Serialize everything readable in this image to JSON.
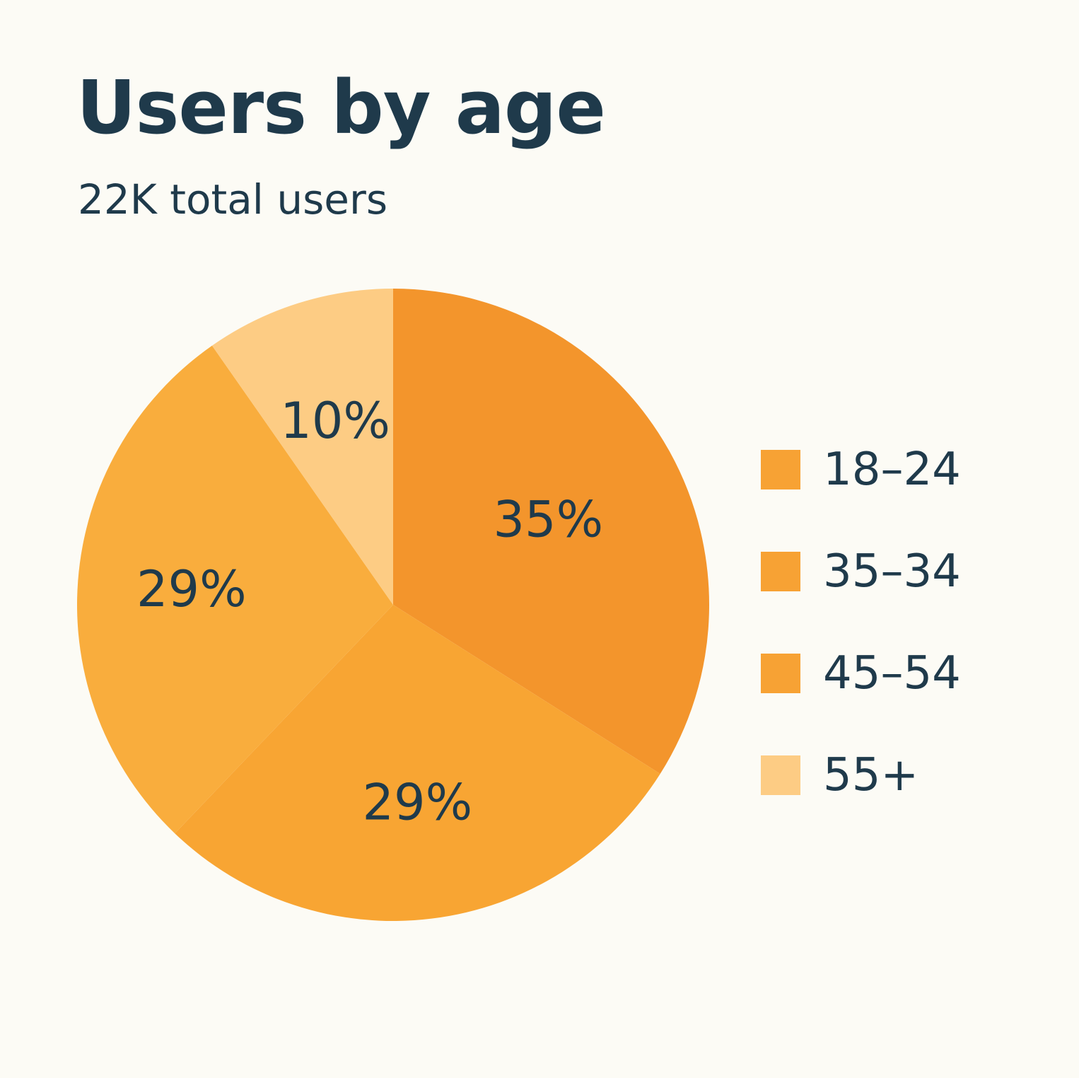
{
  "title": "Users by age",
  "subtitle": "22K total users",
  "chart_data": {
    "type": "pie",
    "categories": [
      "18–24",
      "35–34",
      "45–54",
      "55+"
    ],
    "values": [
      35,
      29,
      29,
      10
    ],
    "value_labels": [
      "35%",
      "29%",
      "29%",
      "10%"
    ],
    "colors": [
      "#f3952c",
      "#f8a533",
      "#f9ad3d",
      "#fdcc84"
    ],
    "legend": {
      "entries": [
        "18–24",
        "35–34",
        "45–54",
        "55+"
      ],
      "colors": [
        "#f7a234",
        "#f7a234",
        "#f7a234",
        "#fdcc84"
      ],
      "placement": "right"
    },
    "text_color": "#1f3a4b"
  }
}
